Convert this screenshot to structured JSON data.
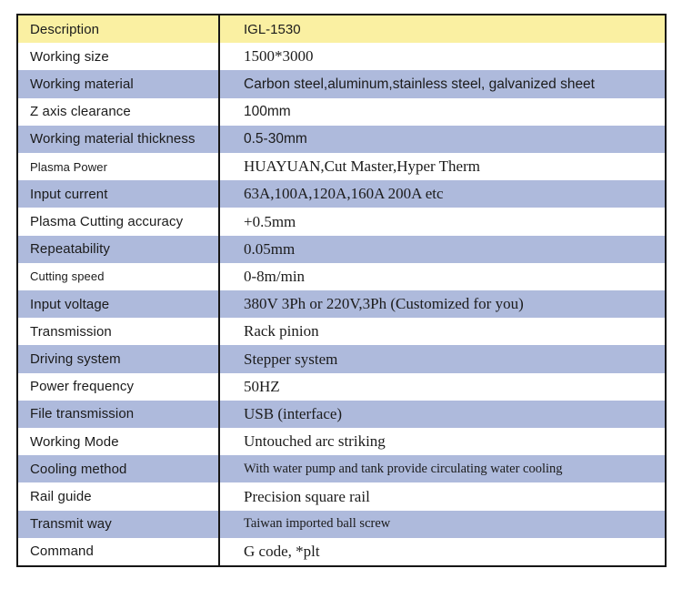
{
  "table": {
    "title": "IGL-1530 specification table",
    "colors": {
      "header_bg": "#FAF0A2",
      "alt_row_bg": "#AEBADC",
      "border": "#161616",
      "text": "#1b1b1b"
    },
    "rows": [
      {
        "label": "Description",
        "value": "IGL-1530"
      },
      {
        "label": "Working size",
        "value": "1500*3000"
      },
      {
        "label": "Working material",
        "value": "Carbon steel,aluminum,stainless steel, galvanized sheet"
      },
      {
        "label": "Z axis clearance",
        "value": "100mm"
      },
      {
        "label": "Working material thickness",
        "value": "0.5-30mm"
      },
      {
        "label": "Plasma Power",
        "value": "HUAYUAN,Cut Master,Hyper Therm"
      },
      {
        "label": "Input current",
        "value": "63A,100A,120A,160A 200A etc"
      },
      {
        "label": "Plasma Cutting accuracy",
        "value": "+0.5mm"
      },
      {
        "label": "Repeatability",
        "value": "0.05mm"
      },
      {
        "label": "Cutting speed",
        "value": "0-8m/min"
      },
      {
        "label": "Input voltage",
        "value": "380V 3Ph or 220V,3Ph (Customized for you)"
      },
      {
        "label": "Transmission",
        "value": "Rack pinion"
      },
      {
        "label": "Driving system",
        "value": "Stepper system"
      },
      {
        "label": "Power frequency",
        "value": "50HZ"
      },
      {
        "label": "File transmission",
        "value": "USB (interface)"
      },
      {
        "label": "Working Mode",
        "value": "Untouched arc striking"
      },
      {
        "label": "Cooling method",
        "value": "With water pump and tank provide circulating water cooling"
      },
      {
        "label": "Rail guide",
        "value": "Precision square rail"
      },
      {
        "label": "Transmit way",
        "value": "Taiwan imported ball screw"
      },
      {
        "label": "Command",
        "value": "G code, *plt"
      }
    ]
  }
}
